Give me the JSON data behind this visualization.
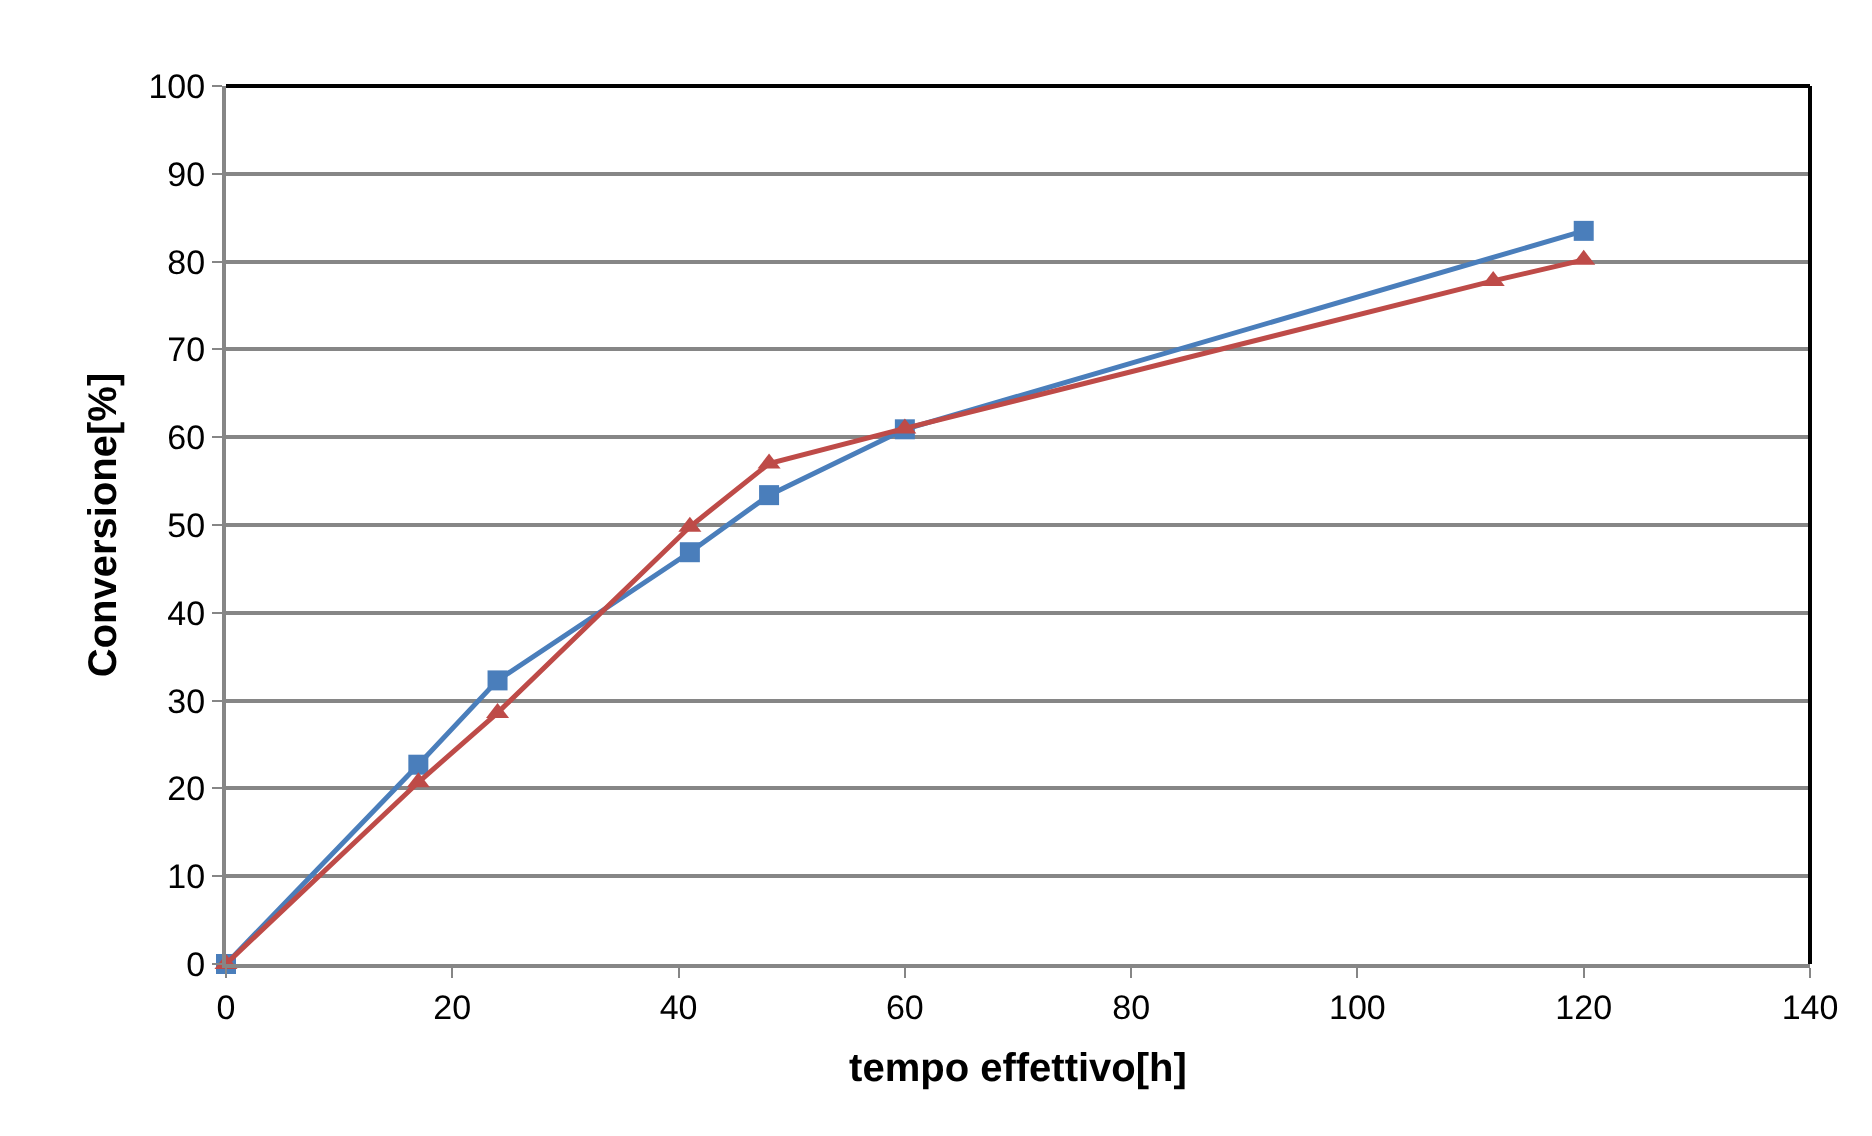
{
  "chart_data": {
    "type": "line",
    "xlabel": "tempo effettivo[h]",
    "ylabel": "Conversione[%]",
    "xlim": [
      0,
      140
    ],
    "xticks": [
      0,
      20,
      40,
      60,
      80,
      100,
      120,
      140
    ],
    "ylim": [
      0,
      100
    ],
    "yticks": [
      0,
      10,
      20,
      30,
      40,
      50,
      60,
      70,
      80,
      90,
      100
    ],
    "grid": "y",
    "series": [
      {
        "color": "#4a7ebb",
        "marker": "square",
        "x": [
          0,
          17,
          24,
          41,
          48,
          60,
          120
        ],
        "values": [
          0,
          22.7,
          32.3,
          46.9,
          53.4,
          60.9,
          83.5
        ]
      },
      {
        "color": "#be4b48",
        "marker": "triangle",
        "x": [
          0,
          17,
          24,
          41,
          48,
          60,
          112,
          120
        ],
        "values": [
          0,
          20.7,
          28.6,
          49.8,
          57,
          61,
          77.8,
          80.2
        ]
      }
    ]
  }
}
